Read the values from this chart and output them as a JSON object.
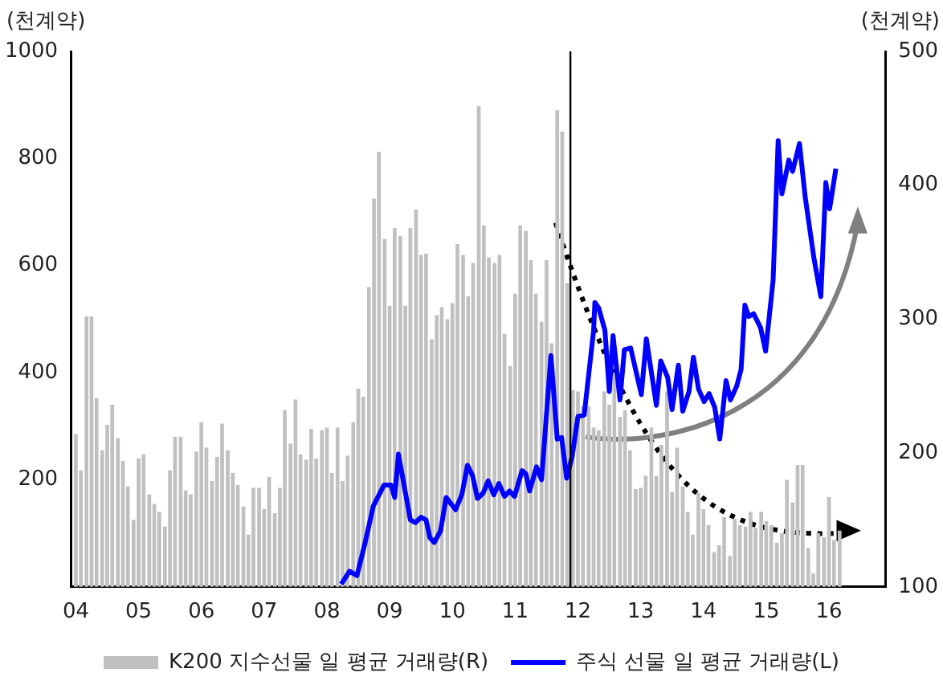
{
  "chart_data": {
    "type": "bar",
    "ylabel": "(천계약)",
    "y2label": "(천계약)",
    "xlim": [
      2003.92,
      2016.9
    ],
    "xticks": [
      {
        "value": 2004,
        "label": "04"
      },
      {
        "value": 2005,
        "label": "05"
      },
      {
        "value": 2006,
        "label": "06"
      },
      {
        "value": 2007,
        "label": "07"
      },
      {
        "value": 2008,
        "label": "08"
      },
      {
        "value": 2009,
        "label": "09"
      },
      {
        "value": 2010,
        "label": "10"
      },
      {
        "value": 2011,
        "label": "11"
      },
      {
        "value": 2012,
        "label": "12"
      },
      {
        "value": 2013,
        "label": "13"
      },
      {
        "value": 2014,
        "label": "14"
      },
      {
        "value": 2015,
        "label": "15"
      },
      {
        "value": 2016,
        "label": "16"
      }
    ],
    "ylim": [
      0,
      1000
    ],
    "yticks": [
      200,
      400,
      600,
      800,
      1000
    ],
    "y2lim": [
      100,
      500
    ],
    "y2ticks": [
      100,
      200,
      300,
      400,
      500
    ],
    "grid": false,
    "legend": "bottom",
    "ref_lines": [
      {
        "axis": "x",
        "value": 2011.88,
        "color": "#000000"
      }
    ],
    "series": [
      {
        "name": "K200 지수선물 일 평균 거래량(R)",
        "type": "bar",
        "axis": "y2",
        "color": "#c0c0c0",
        "x": [
          2004.0,
          2004.08,
          2004.17,
          2004.25,
          2004.33,
          2004.42,
          2004.5,
          2004.58,
          2004.67,
          2004.75,
          2004.83,
          2004.92,
          2005.0,
          2005.08,
          2005.17,
          2005.25,
          2005.33,
          2005.42,
          2005.5,
          2005.58,
          2005.67,
          2005.75,
          2005.83,
          2005.92,
          2006.0,
          2006.08,
          2006.17,
          2006.25,
          2006.33,
          2006.42,
          2006.5,
          2006.58,
          2006.67,
          2006.75,
          2006.83,
          2006.92,
          2007.0,
          2007.08,
          2007.17,
          2007.25,
          2007.33,
          2007.42,
          2007.5,
          2007.58,
          2007.67,
          2007.75,
          2007.83,
          2007.92,
          2008.0,
          2008.08,
          2008.17,
          2008.25,
          2008.33,
          2008.42,
          2008.5,
          2008.58,
          2008.67,
          2008.75,
          2008.83,
          2008.92,
          2009.0,
          2009.08,
          2009.17,
          2009.25,
          2009.33,
          2009.42,
          2009.5,
          2009.58,
          2009.67,
          2009.75,
          2009.83,
          2009.92,
          2010.0,
          2010.08,
          2010.17,
          2010.25,
          2010.33,
          2010.42,
          2010.5,
          2010.58,
          2010.67,
          2010.75,
          2010.83,
          2010.92,
          2011.0,
          2011.08,
          2011.17,
          2011.25,
          2011.33,
          2011.42,
          2011.5,
          2011.58,
          2011.67,
          2011.75,
          2011.83,
          2011.92,
          2012.0,
          2012.08,
          2012.17,
          2012.25,
          2012.33,
          2012.42,
          2012.5,
          2012.58,
          2012.67,
          2012.75,
          2012.83,
          2012.92,
          2013.0,
          2013.08,
          2013.17,
          2013.25,
          2013.33,
          2013.42,
          2013.5,
          2013.58,
          2013.67,
          2013.75,
          2013.83,
          2013.92,
          2014.0,
          2014.08,
          2014.17,
          2014.25,
          2014.33,
          2014.42,
          2014.5,
          2014.58,
          2014.67,
          2014.75,
          2014.83,
          2014.92,
          2015.0,
          2015.08,
          2015.17,
          2015.25,
          2015.33,
          2015.42,
          2015.5,
          2015.58,
          2015.67,
          2015.75,
          2015.83,
          2015.92,
          2016.0,
          2016.08,
          2016.17
        ],
        "values": [
          214,
          187,
          302,
          302,
          241,
          202,
          221,
          236,
          211,
          194,
          175,
          150,
          196,
          199,
          169,
          162,
          156,
          145,
          187,
          212,
          212,
          172,
          169,
          201,
          223,
          204,
          179,
          197,
          222,
          202,
          185,
          176,
          160,
          139,
          174,
          174,
          158,
          182,
          155,
          174,
          232,
          207,
          240,
          199,
          195,
          218,
          196,
          217,
          219,
          185,
          219,
          179,
          198,
          223,
          248,
          242,
          324,
          390,
          425,
          360,
          310,
          368,
          362,
          310,
          368,
          382,
          348,
          349,
          285,
          303,
          309,
          300,
          312,
          356,
          348,
          317,
          342,
          459,
          370,
          346,
          342,
          348,
          289,
          265,
          319,
          370,
          366,
          344,
          319,
          298,
          344,
          282,
          456,
          440,
          327,
          247,
          246,
          235,
          235,
          219,
          217,
          246,
          236,
          260,
          227,
          232,
          202,
          173,
          174,
          183,
          219,
          183,
          206,
          246,
          171,
          204,
          175,
          156,
          139,
          170,
          158,
          146,
          126,
          131,
          152,
          123,
          151,
          146,
          145,
          156,
          144,
          156,
          149,
          146,
          133,
          140,
          180,
          163,
          191,
          191,
          129,
          110,
          140,
          137,
          167,
          135,
          142
        ]
      },
      {
        "name": "주식 선물 일 평균 거래량(L)",
        "type": "line",
        "color": "#0000ff",
        "x": [
          2008.23,
          2008.36,
          2008.48,
          2008.61,
          2008.74,
          2008.91,
          2009.02,
          2009.08,
          2009.14,
          2009.33,
          2009.41,
          2009.5,
          2009.58,
          2009.64,
          2009.71,
          2009.81,
          2009.9,
          2010.05,
          2010.15,
          2010.24,
          2010.32,
          2010.4,
          2010.49,
          2010.57,
          2010.66,
          2010.74,
          2010.83,
          2010.91,
          2010.99,
          2011.11,
          2011.17,
          2011.23,
          2011.34,
          2011.42,
          2011.57,
          2011.67,
          2011.74,
          2011.82,
          2011.91,
          2012.0,
          2012.1,
          2012.25,
          2012.27,
          2012.33,
          2012.43,
          2012.5,
          2012.56,
          2012.67,
          2012.74,
          2012.84,
          2013.01,
          2013.09,
          2013.25,
          2013.32,
          2013.43,
          2013.5,
          2013.6,
          2013.67,
          2013.77,
          2013.84,
          2013.92,
          2014.01,
          2014.09,
          2014.18,
          2014.26,
          2014.36,
          2014.43,
          2014.53,
          2014.6,
          2014.66,
          2014.72,
          2014.8,
          2014.91,
          2014.99,
          2015.11,
          2015.19,
          2015.25,
          2015.36,
          2015.42,
          2015.53,
          2015.62,
          2015.76,
          2015.87,
          2015.95,
          2016.01,
          2016.11
        ],
        "values": [
          5,
          29,
          21,
          83,
          151,
          190,
          190,
          167,
          248,
          125,
          120,
          130,
          125,
          92,
          83,
          104,
          167,
          144,
          172,
          227,
          208,
          165,
          175,
          198,
          172,
          193,
          169,
          179,
          169,
          217,
          211,
          179,
          224,
          200,
          432,
          276,
          279,
          203,
          245,
          318,
          321,
          479,
          531,
          521,
          479,
          365,
          469,
          349,
          443,
          446,
          359,
          463,
          339,
          422,
          391,
          331,
          414,
          328,
          365,
          429,
          370,
          346,
          361,
          335,
          276,
          385,
          349,
          375,
          406,
          526,
          505,
          510,
          484,
          440,
          573,
          833,
          734,
          797,
          776,
          828,
          729,
          614,
          542,
          755,
          706,
          781
        ]
      }
    ]
  }
}
